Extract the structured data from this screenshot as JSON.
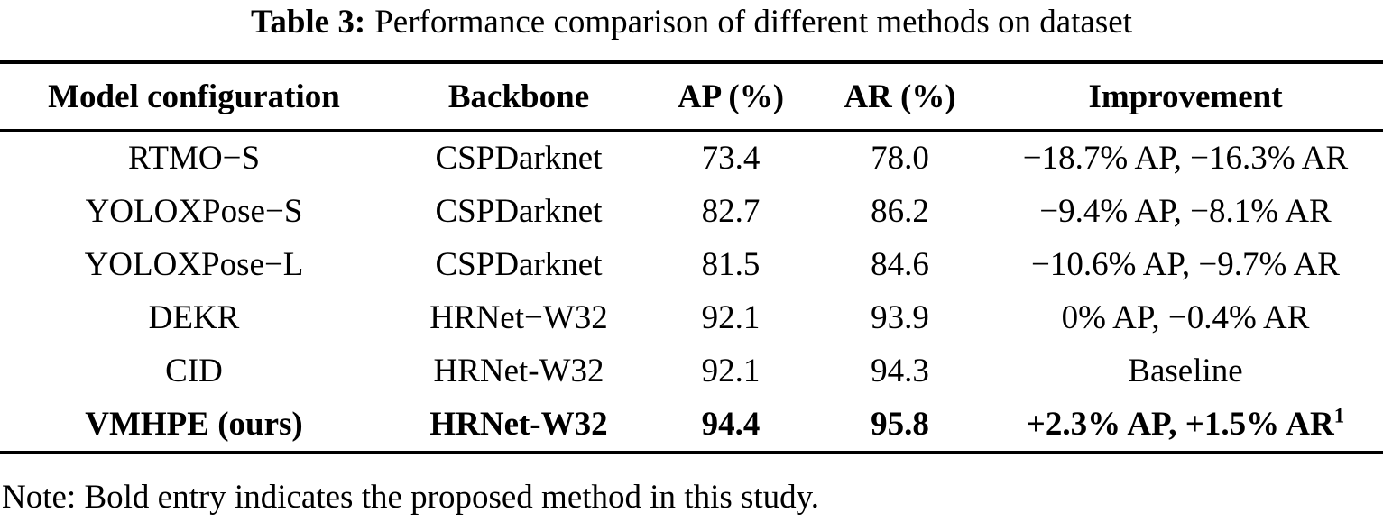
{
  "caption": {
    "label": "Table 3:",
    "text": "Performance comparison of different methods on dataset"
  },
  "table": {
    "columns": [
      "Model configuration",
      "Backbone",
      "AP (%)",
      "AR (%)",
      "Improvement"
    ],
    "rows": [
      {
        "model": "RTMO−S",
        "backbone": "CSPDarknet",
        "ap": "73.4",
        "ar": "78.0",
        "improvement": "−18.7% AP, −16.3% AR",
        "sup": ""
      },
      {
        "model": "YOLOXPose−S",
        "backbone": "CSPDarknet",
        "ap": "82.7",
        "ar": "86.2",
        "improvement": "−9.4% AP, −8.1% AR",
        "sup": ""
      },
      {
        "model": "YOLOXPose−L",
        "backbone": "CSPDarknet",
        "ap": "81.5",
        "ar": "84.6",
        "improvement": "−10.6% AP, −9.7% AR",
        "sup": ""
      },
      {
        "model": "DEKR",
        "backbone": "HRNet−W32",
        "ap": "92.1",
        "ar": "93.9",
        "improvement": "0% AP, −0.4% AR",
        "sup": ""
      },
      {
        "model": "CID",
        "backbone": "HRNet-W32",
        "ap": "92.1",
        "ar": "94.3",
        "improvement": "Baseline",
        "sup": ""
      },
      {
        "model": "VMHPE (ours)",
        "backbone": "HRNet-W32",
        "ap": "94.4",
        "ar": "95.8",
        "improvement": "+2.3% AP, +1.5% AR",
        "sup": "1"
      }
    ]
  },
  "note": "Note: Bold entry indicates the proposed method in this study.",
  "colors": {
    "text": "#000000",
    "background": "#ffffff",
    "rule": "#000000"
  }
}
